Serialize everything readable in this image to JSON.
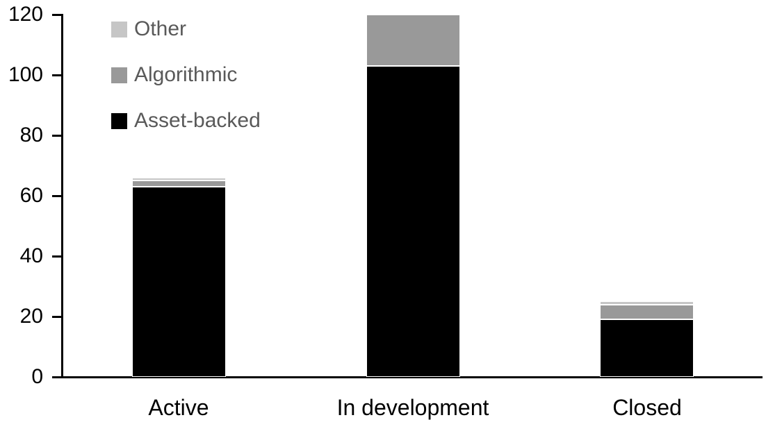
{
  "chart_data": {
    "type": "bar",
    "stacked": true,
    "title": "",
    "xlabel": "",
    "ylabel": "",
    "categories": [
      "Active",
      "In development",
      "Closed"
    ],
    "series": [
      {
        "name": "Asset-backed",
        "color": "#000000",
        "values": [
          63,
          103,
          19
        ]
      },
      {
        "name": "Algorithmic",
        "color": "#999999",
        "values": [
          2,
          17,
          5
        ]
      },
      {
        "name": "Other",
        "color": "#c6c6c6",
        "values": [
          1,
          0,
          1
        ]
      }
    ],
    "stack_totals": [
      66,
      120,
      25
    ],
    "ylim": [
      0,
      120
    ],
    "yticks": [
      0,
      20,
      40,
      60,
      80,
      100,
      120
    ],
    "grid": false,
    "legend": {
      "position": "top-left-inside",
      "order": [
        "Other",
        "Algorithmic",
        "Asset-backed"
      ],
      "text_color": "#595959"
    },
    "axis_color": "#000000",
    "tick_label_color": "#000000"
  }
}
